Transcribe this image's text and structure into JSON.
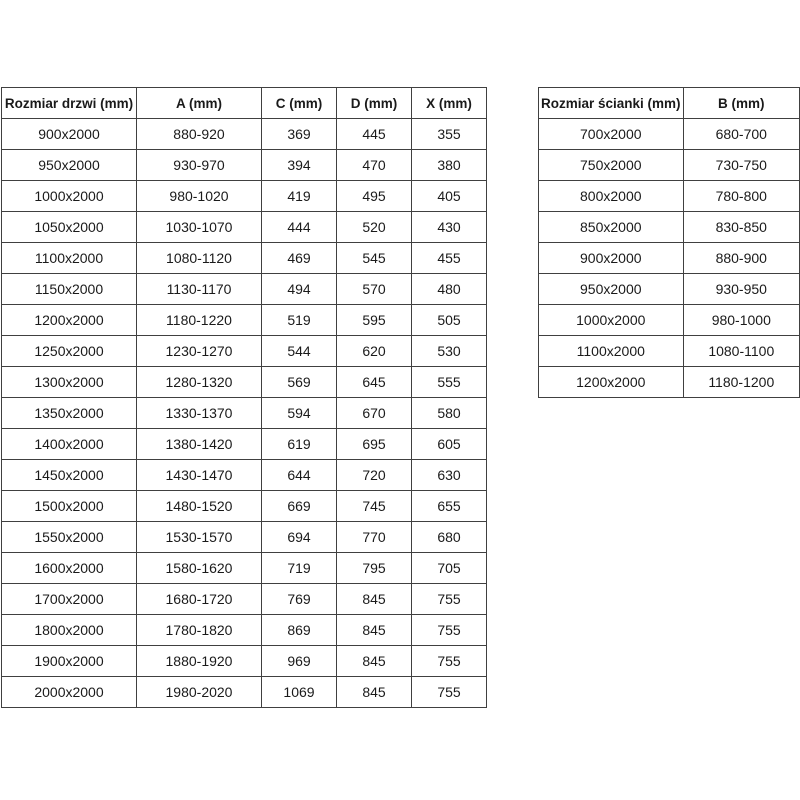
{
  "tables": {
    "doors": {
      "name": "door-sizes-table",
      "headers": [
        "Rozmiar drzwi (mm)",
        "A (mm)",
        "C (mm)",
        "D (mm)",
        "X (mm)"
      ],
      "rows": [
        [
          "900x2000",
          "880-920",
          "369",
          "445",
          "355"
        ],
        [
          "950x2000",
          "930-970",
          "394",
          "470",
          "380"
        ],
        [
          "1000x2000",
          "980-1020",
          "419",
          "495",
          "405"
        ],
        [
          "1050x2000",
          "1030-1070",
          "444",
          "520",
          "430"
        ],
        [
          "1100x2000",
          "1080-1120",
          "469",
          "545",
          "455"
        ],
        [
          "1150x2000",
          "1130-1170",
          "494",
          "570",
          "480"
        ],
        [
          "1200x2000",
          "1180-1220",
          "519",
          "595",
          "505"
        ],
        [
          "1250x2000",
          "1230-1270",
          "544",
          "620",
          "530"
        ],
        [
          "1300x2000",
          "1280-1320",
          "569",
          "645",
          "555"
        ],
        [
          "1350x2000",
          "1330-1370",
          "594",
          "670",
          "580"
        ],
        [
          "1400x2000",
          "1380-1420",
          "619",
          "695",
          "605"
        ],
        [
          "1450x2000",
          "1430-1470",
          "644",
          "720",
          "630"
        ],
        [
          "1500x2000",
          "1480-1520",
          "669",
          "745",
          "655"
        ],
        [
          "1550x2000",
          "1530-1570",
          "694",
          "770",
          "680"
        ],
        [
          "1600x2000",
          "1580-1620",
          "719",
          "795",
          "705"
        ],
        [
          "1700x2000",
          "1680-1720",
          "769",
          "845",
          "755"
        ],
        [
          "1800x2000",
          "1780-1820",
          "869",
          "845",
          "755"
        ],
        [
          "1900x2000",
          "1880-1920",
          "969",
          "845",
          "755"
        ],
        [
          "2000x2000",
          "1980-2020",
          "1069",
          "845",
          "755"
        ]
      ]
    },
    "walls": {
      "name": "wall-sizes-table",
      "headers": [
        "Rozmiar ścianki (mm)",
        "B (mm)"
      ],
      "rows": [
        [
          "700x2000",
          "680-700"
        ],
        [
          "750x2000",
          "730-750"
        ],
        [
          "800x2000",
          "780-800"
        ],
        [
          "850x2000",
          "830-850"
        ],
        [
          "900x2000",
          "880-900"
        ],
        [
          "950x2000",
          "930-950"
        ],
        [
          "1000x2000",
          "980-1000"
        ],
        [
          "1100x2000",
          "1080-1100"
        ],
        [
          "1200x2000",
          "1180-1200"
        ]
      ]
    },
    "colors": {
      "border": "#404040",
      "text": "#1a1a1a",
      "background": "#ffffff"
    }
  }
}
